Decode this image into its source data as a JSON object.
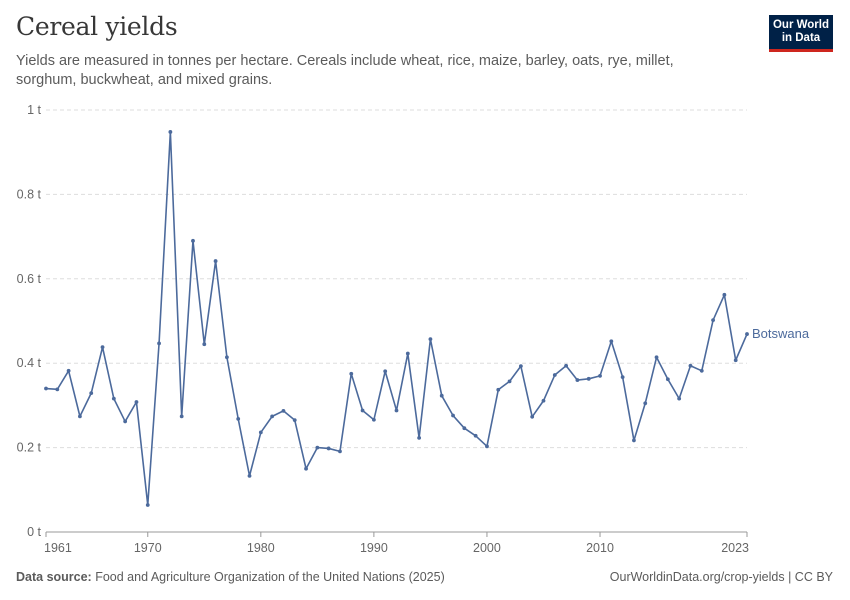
{
  "header": {
    "title": "Cereal yields",
    "subtitle": "Yields are measured in tonnes per hectare. Cereals include wheat, rice, maize, barley, oats, rye, millet, sorghum, buckwheat, and mixed grains."
  },
  "logo": {
    "line1": "Our World",
    "line2": "in Data"
  },
  "footer": {
    "source_label": "Data source:",
    "source_text": "Food and Agriculture Organization of the United Nations (2025)",
    "right": "OurWorldinData.org/crop-yields | CC BY"
  },
  "colors": {
    "series": "#4c6a9c",
    "grid": "#dddddd",
    "text": "#5b5b5b",
    "logo_bg": "#002147",
    "logo_accent": "#ce261e"
  },
  "chart_data": {
    "type": "line",
    "title": "Cereal yields",
    "xlim": [
      1961,
      2023
    ],
    "ylim": [
      0,
      1
    ],
    "y_ticks": [
      0,
      0.2,
      0.4,
      0.6,
      0.8,
      1
    ],
    "y_tick_labels": [
      "0 t",
      "0.2 t",
      "0.4 t",
      "0.6 t",
      "0.8 t",
      "1 t"
    ],
    "x_ticks": [
      1961,
      1970,
      1980,
      1990,
      2000,
      2010,
      2023
    ],
    "x_tick_labels": [
      "1961",
      "1970",
      "1980",
      "1990",
      "2000",
      "2010",
      "2023"
    ],
    "grid": "horizontal dashed",
    "series": [
      {
        "name": "Botswana",
        "color": "#4c6a9c",
        "x": [
          1961,
          1962,
          1963,
          1964,
          1965,
          1966,
          1967,
          1968,
          1969,
          1970,
          1971,
          1972,
          1973,
          1974,
          1975,
          1976,
          1977,
          1978,
          1979,
          1980,
          1981,
          1982,
          1983,
          1984,
          1985,
          1986,
          1987,
          1988,
          1989,
          1990,
          1991,
          1992,
          1993,
          1994,
          1995,
          1996,
          1997,
          1998,
          1999,
          2000,
          2001,
          2002,
          2003,
          2004,
          2005,
          2006,
          2007,
          2008,
          2009,
          2010,
          2011,
          2012,
          2013,
          2014,
          2015,
          2016,
          2017,
          2018,
          2019,
          2020,
          2021,
          2022,
          2023
        ],
        "values": [
          0.34,
          0.338,
          0.382,
          0.274,
          0.329,
          0.438,
          0.316,
          0.262,
          0.308,
          0.064,
          0.447,
          0.948,
          0.274,
          0.69,
          0.445,
          0.642,
          0.414,
          0.268,
          0.133,
          0.236,
          0.274,
          0.287,
          0.265,
          0.15,
          0.2,
          0.198,
          0.191,
          0.375,
          0.288,
          0.266,
          0.381,
          0.288,
          0.423,
          0.223,
          0.457,
          0.323,
          0.276,
          0.246,
          0.228,
          0.203,
          0.337,
          0.357,
          0.393,
          0.273,
          0.311,
          0.372,
          0.394,
          0.36,
          0.363,
          0.37,
          0.452,
          0.367,
          0.217,
          0.305,
          0.414,
          0.362,
          0.316,
          0.394,
          0.382,
          0.502,
          0.562,
          0.407,
          0.469
        ]
      }
    ]
  }
}
